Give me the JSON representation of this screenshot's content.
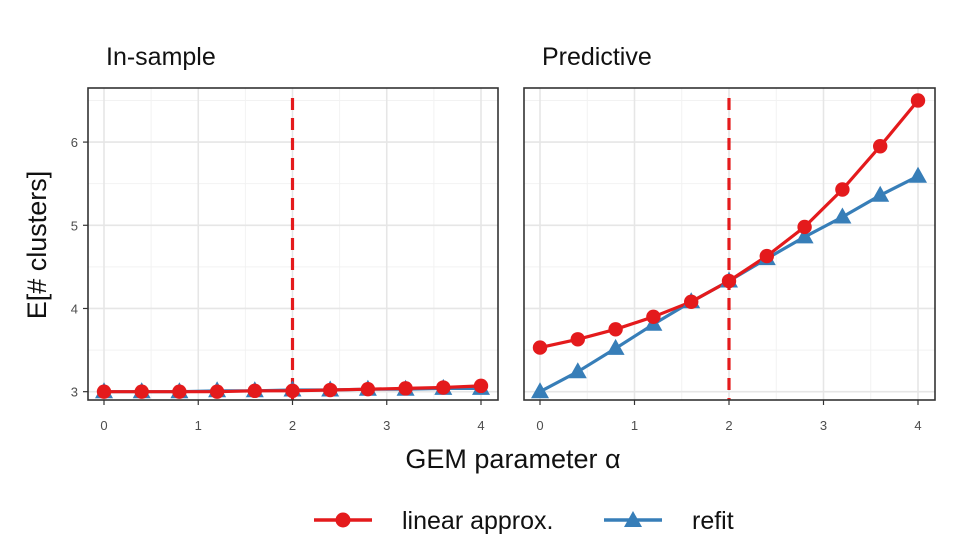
{
  "chart_data": [
    {
      "type": "line",
      "title": "In-sample",
      "xlabel": "GEM parameter α",
      "ylabel": "E[# clusters]",
      "xlim": [
        0,
        4
      ],
      "ylim": [
        2.9,
        6.65
      ],
      "xticks": [
        0,
        1,
        2,
        3,
        4
      ],
      "yticks": [
        3,
        4,
        5,
        6
      ],
      "reference_line": {
        "x": 2,
        "style": "dashed",
        "color": "#e41a1c"
      },
      "x": [
        0,
        0.4,
        0.8,
        1.2,
        1.6,
        2.0,
        2.4,
        2.8,
        3.2,
        3.6,
        4.0
      ],
      "series": [
        {
          "name": "linear approx.",
          "marker": "circle",
          "color": "#e41a1c",
          "values": [
            3.0,
            3.0,
            3.0,
            3.0,
            3.01,
            3.01,
            3.02,
            3.03,
            3.04,
            3.05,
            3.07
          ]
        },
        {
          "name": "refit",
          "marker": "triangle",
          "color": "#377eb8",
          "values": [
            3.0,
            3.0,
            3.0,
            3.01,
            3.01,
            3.02,
            3.02,
            3.03,
            3.03,
            3.04,
            3.04
          ]
        }
      ]
    },
    {
      "type": "line",
      "title": "Predictive",
      "xlabel": "GEM parameter α",
      "ylabel": "E[# clusters]",
      "xlim": [
        0,
        4
      ],
      "ylim": [
        2.9,
        6.65
      ],
      "xticks": [
        0,
        1,
        2,
        3,
        4
      ],
      "yticks": [
        3,
        4,
        5,
        6
      ],
      "reference_line": {
        "x": 2,
        "style": "dashed",
        "color": "#e41a1c"
      },
      "x": [
        0,
        0.4,
        0.8,
        1.2,
        1.6,
        2.0,
        2.4,
        2.8,
        3.2,
        3.6,
        4.0
      ],
      "series": [
        {
          "name": "linear approx.",
          "marker": "circle",
          "color": "#e41a1c",
          "values": [
            3.53,
            3.63,
            3.75,
            3.9,
            4.08,
            4.33,
            4.63,
            4.98,
            5.43,
            5.95,
            6.5
          ]
        },
        {
          "name": "refit",
          "marker": "triangle",
          "color": "#377eb8",
          "values": [
            3.0,
            3.24,
            3.52,
            3.81,
            4.08,
            4.33,
            4.6,
            4.86,
            5.1,
            5.36,
            5.59
          ]
        }
      ]
    }
  ],
  "legend": {
    "position": "bottom",
    "items": [
      {
        "label": "linear approx.",
        "marker": "circle",
        "color": "#e41a1c"
      },
      {
        "label": "refit",
        "marker": "triangle",
        "color": "#377eb8"
      }
    ]
  }
}
